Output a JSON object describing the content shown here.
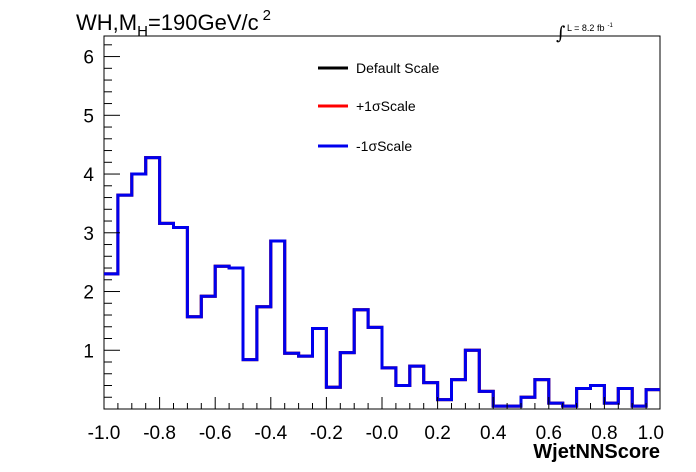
{
  "chart_data": {
    "type": "line",
    "style": "step-histogram",
    "title_parts": {
      "main": "WH,M",
      "sub": "H",
      "rest": "=190GeV/c",
      "sup": "2"
    },
    "lumi_text": "L = 8.2 fb",
    "lumi_sup": "-1",
    "lumi_symbol": "∫",
    "xlabel": "WjetNNScore",
    "ylabel": "",
    "xlim": [
      -1.0,
      1.0
    ],
    "ylim": [
      0,
      6.35
    ],
    "x_tick_labels": [
      "-1.0",
      "-0.8",
      "-0.6",
      "-0.4",
      "-0.2",
      "-0.0",
      "0.2",
      "0.4",
      "0.6",
      "0.8",
      "1.0"
    ],
    "x_tick_values": [
      -1.0,
      -0.8,
      -0.6,
      -0.4,
      -0.2,
      0.0,
      0.2,
      0.4,
      0.6,
      0.8,
      1.0
    ],
    "y_tick_labels": [
      "1",
      "2",
      "3",
      "4",
      "5",
      "6"
    ],
    "y_tick_values": [
      1,
      2,
      3,
      4,
      5,
      6
    ],
    "grid": false,
    "legend_position": "top-center",
    "bin_edges_start": -1.0,
    "bin_width": 0.05,
    "series": [
      {
        "name": "Default Scale",
        "color": "#000000",
        "values": [
          2.3,
          3.64,
          4.0,
          4.28,
          3.16,
          3.09,
          1.57,
          1.92,
          2.43,
          2.4,
          0.84,
          1.74,
          2.86,
          0.95,
          0.9,
          1.37,
          0.37,
          0.96,
          1.69,
          1.39,
          0.7,
          0.4,
          0.73,
          0.45,
          0.16,
          0.5,
          1.0,
          0.3,
          0.05,
          0.05,
          0.2,
          0.5,
          0.1,
          0.05,
          0.35,
          0.4,
          0.1,
          0.35,
          0.05,
          0.33
        ]
      },
      {
        "name": "+1σScale",
        "color": "#ff0000",
        "values": [
          2.3,
          3.64,
          4.0,
          4.28,
          3.16,
          3.09,
          1.57,
          1.92,
          2.43,
          2.4,
          0.84,
          1.74,
          2.86,
          0.95,
          0.9,
          1.37,
          0.37,
          0.96,
          1.69,
          1.39,
          0.7,
          0.4,
          0.73,
          0.45,
          0.16,
          0.5,
          1.0,
          0.3,
          0.05,
          0.05,
          0.2,
          0.5,
          0.1,
          0.05,
          0.35,
          0.4,
          0.1,
          0.35,
          0.05,
          0.33
        ]
      },
      {
        "name": "-1σScale",
        "color": "#0000ee",
        "values": [
          2.3,
          3.64,
          4.0,
          4.28,
          3.16,
          3.09,
          1.57,
          1.92,
          2.43,
          2.4,
          0.84,
          1.74,
          2.86,
          0.95,
          0.9,
          1.37,
          0.37,
          0.96,
          1.69,
          1.39,
          0.7,
          0.4,
          0.73,
          0.45,
          0.16,
          0.5,
          1.0,
          0.3,
          0.05,
          0.05,
          0.2,
          0.5,
          0.1,
          0.05,
          0.35,
          0.4,
          0.1,
          0.35,
          0.05,
          0.33
        ]
      }
    ]
  }
}
